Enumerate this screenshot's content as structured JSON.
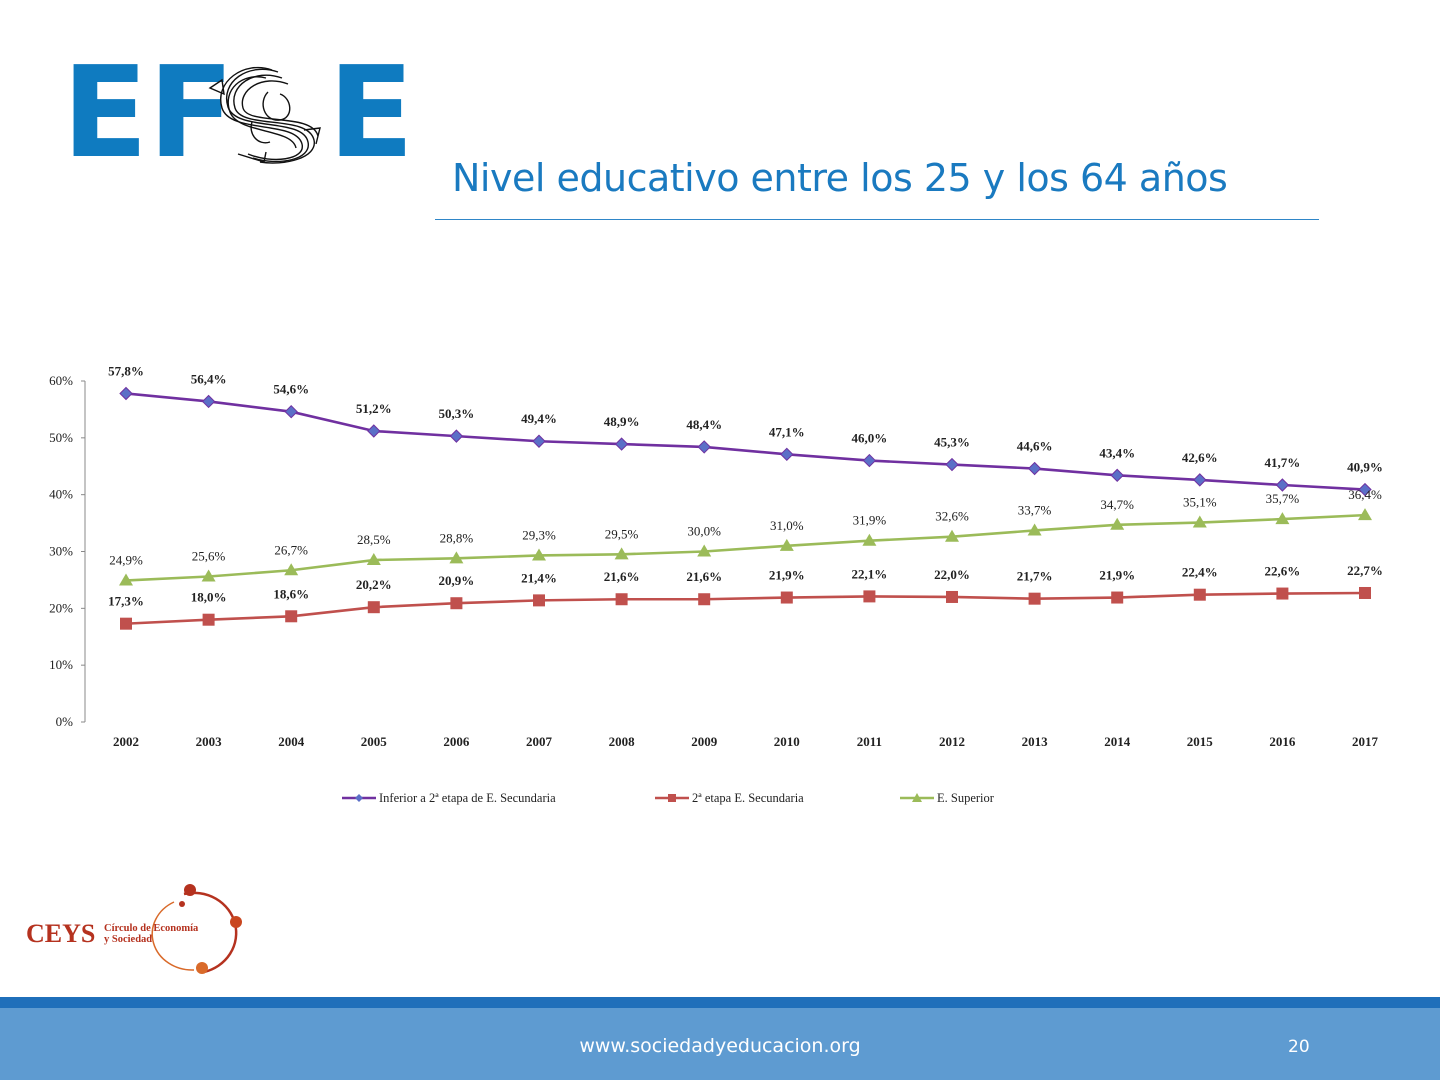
{
  "logo": {
    "text": "EFSE",
    "left_letters": "EF",
    "right_letter": "E"
  },
  "slide": {
    "title": "Nivel educativo entre los 25 y los 64 años",
    "page_number": "20"
  },
  "footer": {
    "url": "www.sociedadyeducacion.org"
  },
  "ceys": {
    "acronym": "CEYS",
    "line1": "Círculo de Economía",
    "line2": "y Sociedad"
  },
  "colors": {
    "title": "#1a7ac0",
    "brand_blue": "#0f7bc0",
    "footer_dark": "#1f6fba",
    "footer_light": "#5e9bd1",
    "ceys_red": "#b5321f"
  },
  "chart_data": {
    "type": "line",
    "x": [
      "2002",
      "2003",
      "2004",
      "2005",
      "2006",
      "2007",
      "2008",
      "2009",
      "2010",
      "2011",
      "2012",
      "2013",
      "2014",
      "2015",
      "2016",
      "2017"
    ],
    "y_ticks": [
      "0%",
      "10%",
      "20%",
      "30%",
      "40%",
      "50%",
      "60%"
    ],
    "ylim": [
      0,
      60
    ],
    "grid": false,
    "legend_position": "bottom",
    "series": [
      {
        "name": "Inferior a 2ª etapa de E. Secundaria",
        "color": "#7030a0",
        "marker_color": "#5b6fc7",
        "marker": "diamond",
        "values": [
          57.8,
          56.4,
          54.6,
          51.2,
          50.3,
          49.4,
          48.9,
          48.4,
          47.1,
          46.0,
          45.3,
          44.6,
          43.4,
          42.6,
          41.7,
          40.9
        ],
        "labels": [
          "57,8%",
          "56,4%",
          "54,6%",
          "51,2%",
          "50,3%",
          "49,4%",
          "48,9%",
          "48,4%",
          "47,1%",
          "46,0%",
          "45,3%",
          "44,6%",
          "43,4%",
          "42,6%",
          "41,7%",
          "40,9%"
        ]
      },
      {
        "name": "2ª etapa E. Secundaria",
        "color": "#c0504d",
        "marker": "square",
        "values": [
          17.3,
          18.0,
          18.6,
          20.2,
          20.9,
          21.4,
          21.6,
          21.6,
          21.9,
          22.1,
          22.0,
          21.7,
          21.9,
          22.4,
          22.6,
          22.7
        ],
        "labels": [
          "17,3%",
          "18,0%",
          "18,6%",
          "20,2%",
          "20,9%",
          "21,4%",
          "21,6%",
          "21,6%",
          "21,9%",
          "22,1%",
          "22,0%",
          "21,7%",
          "21,9%",
          "22,4%",
          "22,6%",
          "22,7%"
        ]
      },
      {
        "name": "E. Superior",
        "color": "#9bbb59",
        "marker": "triangle",
        "values": [
          24.9,
          25.6,
          26.7,
          28.5,
          28.8,
          29.3,
          29.5,
          30.0,
          31.0,
          31.9,
          32.6,
          33.7,
          34.7,
          35.1,
          35.7,
          36.4
        ],
        "labels": [
          "24,9%",
          "25,6%",
          "26,7%",
          "28,5%",
          "28,8%",
          "29,3%",
          "29,5%",
          "30,0%",
          "31,0%",
          "31,9%",
          "32,6%",
          "33,7%",
          "34,7%",
          "35,1%",
          "35,7%",
          "36,4%"
        ]
      }
    ]
  }
}
